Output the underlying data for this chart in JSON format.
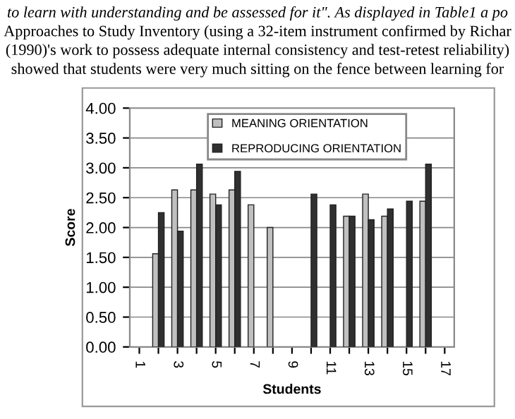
{
  "chart_data": {
    "type": "bar",
    "annotations": [
      "to learn with understanding and be assessed for it\". As displayed in Table1 a po",
      "Approaches to Study Inventory (using a 32-item instrument confirmed by Richar",
      "(1990)'s work to possess adequate internal consistency and test-retest reliability)",
      "showed that students were very much sitting on the fence between learning for"
    ],
    "xlabel": "Students",
    "ylabel": "Score",
    "categories": [
      "1",
      null,
      "3",
      null,
      "5",
      null,
      "7",
      null,
      "9",
      null,
      "11",
      null,
      "13",
      null,
      "15",
      null,
      "17"
    ],
    "series": [
      {
        "name": "MEANING ORIENTATION",
        "color": "#c0c0c0",
        "values": [
          null,
          1.56,
          2.63,
          2.63,
          2.56,
          2.63,
          2.38,
          2.0,
          null,
          null,
          null,
          2.19,
          2.56,
          2.19,
          null,
          2.44,
          null
        ]
      },
      {
        "name": "REPRODUCING ORIENTATION",
        "color": "#303030",
        "values": [
          null,
          2.25,
          1.94,
          3.06,
          2.38,
          2.94,
          null,
          null,
          null,
          2.56,
          2.38,
          2.19,
          2.13,
          2.31,
          2.44,
          3.06,
          null
        ]
      }
    ],
    "ylim": [
      0,
      4
    ],
    "yticks": [
      {
        "value": 0,
        "label": "0.00"
      },
      {
        "value": 0.5,
        "label": "0.50"
      },
      {
        "value": 1,
        "label": "1.00"
      },
      {
        "value": 1.5,
        "label": "1.50"
      },
      {
        "value": 2,
        "label": "2.00"
      },
      {
        "value": 2.5,
        "label": "2.50"
      },
      {
        "value": 3,
        "label": "3.00"
      },
      {
        "value": 3.5,
        "label": "3.50"
      },
      {
        "value": 4,
        "label": "4.00"
      }
    ],
    "grid": "y",
    "legend": "top right"
  }
}
